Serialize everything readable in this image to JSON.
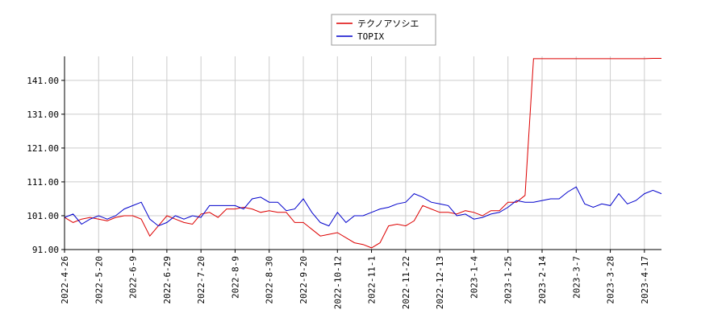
{
  "chart_data": {
    "type": "line",
    "categories": [
      "2022-4-26",
      null,
      null,
      null,
      "2022-5-20",
      null,
      null,
      null,
      "2022-6-9",
      null,
      null,
      null,
      "2022-6-29",
      null,
      null,
      null,
      "2022-7-20",
      null,
      null,
      null,
      "2022-8-9",
      null,
      null,
      null,
      "2022-8-30",
      null,
      null,
      null,
      "2022-9-20",
      null,
      null,
      null,
      "2022-10-12",
      null,
      null,
      null,
      "2022-11-1",
      null,
      null,
      null,
      "2022-11-22",
      null,
      null,
      null,
      "2022-12-13",
      null,
      null,
      null,
      "2023-1-4",
      null,
      null,
      null,
      "2023-1-25",
      null,
      null,
      null,
      "2023-2-14",
      null,
      null,
      null,
      "2023-3-7",
      null,
      null,
      null,
      "2023-3-28",
      null,
      null,
      null,
      "2023-4-17",
      null,
      null
    ],
    "series": [
      {
        "name": "テクノアソシエ",
        "color": "#dd0000",
        "values": [
          100.5,
          99,
          100,
          100.5,
          100,
          99.5,
          100.5,
          101,
          101,
          100,
          95,
          98,
          101,
          100,
          99,
          98.5,
          101.5,
          102,
          100.5,
          103,
          103,
          103.5,
          103,
          102,
          102.5,
          102,
          102,
          99,
          99,
          97,
          95,
          95.5,
          96,
          94.5,
          93,
          92.5,
          91.5,
          93,
          98,
          98.5,
          98,
          99.5,
          104,
          103,
          102,
          102,
          101.5,
          102.5,
          102,
          101,
          102.5,
          102.5,
          105,
          105,
          107,
          147.4,
          147.4,
          147.4,
          147.4,
          147.4,
          147.4,
          147.4,
          147.4,
          147.4,
          147.4,
          147.4,
          147.4,
          147.4,
          147.4,
          147.5,
          147.5
        ]
      },
      {
        "name": "TOPIX",
        "color": "#0000cc",
        "values": [
          100.5,
          101.5,
          98.5,
          100,
          101,
          100,
          101,
          103,
          104,
          105,
          100,
          98,
          99,
          101,
          100,
          101,
          100.5,
          104,
          104,
          104,
          104,
          103,
          106,
          106.5,
          105,
          105,
          102.5,
          103,
          106,
          102,
          99,
          98,
          102,
          99,
          101,
          101,
          102,
          103,
          103.5,
          104.5,
          105,
          107.5,
          106.5,
          105,
          104.5,
          104,
          101,
          101.5,
          100,
          100.5,
          101.5,
          102,
          103.5,
          105.5,
          105,
          105,
          105.5,
          106,
          106,
          108,
          109.5,
          104.5,
          103.5,
          104.5,
          104,
          107.5,
          104.5,
          105.5,
          107.5,
          108.5,
          107.5
        ]
      }
    ],
    "ylim": [
      91,
      148.1
    ],
    "yticks": [
      {
        "value": 91,
        "label": "91.00"
      },
      {
        "value": 101,
        "label": "101.00"
      },
      {
        "value": 111,
        "label": "111.00"
      },
      {
        "value": 121,
        "label": "121.00"
      },
      {
        "value": 131,
        "label": "131.00"
      },
      {
        "value": 141,
        "label": "141.00"
      }
    ],
    "grid": true,
    "legend": "top"
  }
}
